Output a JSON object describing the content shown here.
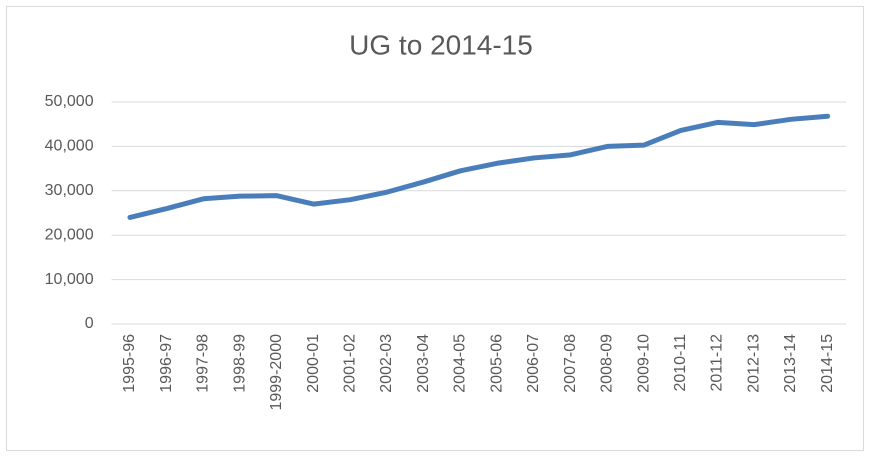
{
  "chart_data": {
    "type": "line",
    "title": "UG to 2014-15",
    "categories": [
      "1995-96",
      "1996-97",
      "1997-98",
      "1998-99",
      "1999-2000",
      "2000-01",
      "2001-02",
      "2002-03",
      "2003-04",
      "2004-05",
      "2005-06",
      "2006-07",
      "2007-08",
      "2008-09",
      "2009-10",
      "2010-11",
      "2011-12",
      "2012-13",
      "2013-14",
      "2014-15"
    ],
    "series": [
      {
        "name": "UG",
        "color": "#4a7ebb",
        "values": [
          24000,
          26000,
          28200,
          28800,
          28900,
          27000,
          28000,
          29700,
          32000,
          34500,
          36200,
          37400,
          38100,
          40000,
          40300,
          43600,
          45400,
          44900,
          46100,
          46800
        ]
      }
    ],
    "ylim": [
      0,
      50000
    ],
    "yticks": [
      0,
      {
        "value": 10000,
        "label": "10,000"
      },
      {
        "value": 20000,
        "label": "20,000"
      },
      {
        "value": 30000,
        "label": "30,000"
      },
      {
        "value": 40000,
        "label": "40,000"
      },
      {
        "value": 50000,
        "label": "50,000"
      }
    ],
    "grid": true
  }
}
